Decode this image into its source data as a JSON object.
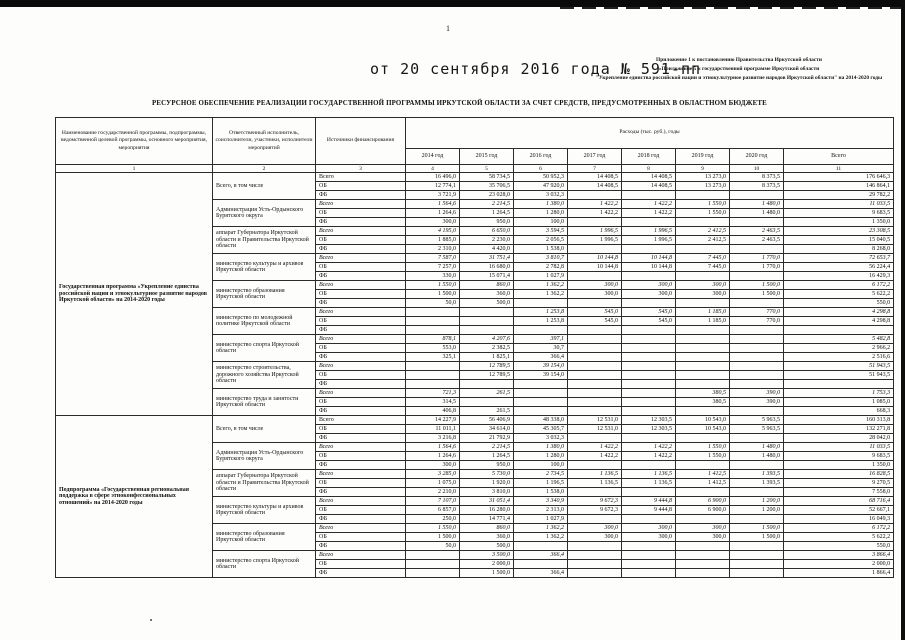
{
  "page": {
    "page_number": "1",
    "date_line": "от 20 сентября 2016 года № 591-пп",
    "appendix_lines": [
      "Приложение 1 к постановлению Правительства Иркутской области",
      "«Приложение 5 к государственной программе Иркутской области",
      "\"Укрепление единства российской нации и этнокультурное развитие народов Иркутской области\" на 2014-2020 годы"
    ],
    "title": "РЕСУРСНОЕ ОБЕСПЕЧЕНИЕ РЕАЛИЗАЦИИ ГОСУДАРСТВЕННОЙ ПРОГРАММЫ ИРКУТСКОЙ ОБЛАСТИ ЗА СЧЕТ СРЕДСТВ, ПРЕДУСМОТРЕННЫХ В ОБЛАСТНОМ БЮДЖЕТЕ"
  },
  "table": {
    "header": {
      "col1": "Наименование государственной программы, подпрограммы, ведомственной целевой программы, основного мероприятия, мероприятия",
      "col2": "Ответственный исполнитель, соисполнители, участники, исполнители мероприятий",
      "col3": "Источники финансирования",
      "expenses": "Расходы (тыс. руб.), годы",
      "years": [
        "2014 год",
        "2015 год",
        "2016 год",
        "2017 год",
        "2018 год",
        "2019 год",
        "2020 год",
        "Всего"
      ],
      "col_numbers": [
        "1",
        "2",
        "3",
        "4",
        "5",
        "6",
        "7",
        "8",
        "9",
        "10",
        "11"
      ]
    },
    "blocks": [
      {
        "program": "Государственная программа «Укрепление единства российской нации и этнокультурное развитие народов Иркутской области» на 2014-2020 годы",
        "groups": [
          {
            "executor": "Всего, в том числе",
            "rows": [
              {
                "source": "Всего",
                "values": [
                  "16 496,0",
                  "58 734,5",
                  "50 952,3",
                  "14 408,5",
                  "14 408,5",
                  "13 273,0",
                  "8 373,5",
                  "176 646,3"
                ]
              },
              {
                "source": "ОБ",
                "values": [
                  "12 774,1",
                  "35 706,5",
                  "47 920,0",
                  "14 408,5",
                  "14 408,5",
                  "13 273,0",
                  "8 373,5",
                  "146 864,1"
                ]
              },
              {
                "source": "ФБ",
                "values": [
                  "3 721,9",
                  "23 028,0",
                  "3 032,3",
                  "",
                  "",
                  "",
                  "",
                  "29 782,2"
                ]
              }
            ]
          },
          {
            "executor": "Администрация Усть-Ордынского Бурятского округа",
            "rows": [
              {
                "source": "Всего",
                "values": [
                  "1 564,6",
                  "2 214,5",
                  "1 380,0",
                  "1 422,2",
                  "1 422,2",
                  "1 550,0",
                  "1 480,0",
                  "11 033,5"
                ]
              },
              {
                "source": "ОБ",
                "values": [
                  "1 264,6",
                  "1 264,5",
                  "1 280,0",
                  "1 422,2",
                  "1 422,2",
                  "1 550,0",
                  "1 480,0",
                  "9 683,5"
                ]
              },
              {
                "source": "ФБ",
                "values": [
                  "300,0",
                  "950,0",
                  "100,0",
                  "",
                  "",
                  "",
                  "",
                  "1 350,0"
                ]
              }
            ]
          },
          {
            "executor": "аппарат Губернатора Иркутской области и Правительства Иркутской области",
            "rows": [
              {
                "source": "Всего",
                "values": [
                  "4 195,0",
                  "6 650,0",
                  "3 594,5",
                  "1 996,5",
                  "1 996,5",
                  "2 412,5",
                  "2 463,5",
                  "23 308,5"
                ]
              },
              {
                "source": "ОБ",
                "values": [
                  "1 885,0",
                  "2 230,0",
                  "2 056,5",
                  "1 996,5",
                  "1 996,5",
                  "2 412,5",
                  "2 463,5",
                  "15 040,5"
                ]
              },
              {
                "source": "ФБ",
                "values": [
                  "2 310,0",
                  "4 420,0",
                  "1 538,0",
                  "",
                  "",
                  "",
                  "",
                  "8 268,0"
                ]
              }
            ]
          },
          {
            "executor": "министерство культуры и архивов Иркутской области",
            "rows": [
              {
                "source": "Всего",
                "values": [
                  "7 587,0",
                  "31 751,4",
                  "3 810,7",
                  "10 144,8",
                  "10 144,8",
                  "7 445,0",
                  "1 770,0",
                  "72 653,7"
                ]
              },
              {
                "source": "ОБ",
                "values": [
                  "7 257,0",
                  "16 680,0",
                  "2 782,8",
                  "10 144,8",
                  "10 144,8",
                  "7 445,0",
                  "1 770,0",
                  "56 224,4"
                ]
              },
              {
                "source": "ФБ",
                "values": [
                  "330,0",
                  "15 071,4",
                  "1 027,9",
                  "",
                  "",
                  "",
                  "",
                  "16 429,3"
                ]
              }
            ]
          },
          {
            "executor": "министерство образования Иркутской области",
            "rows": [
              {
                "source": "Всего",
                "values": [
                  "1 550,0",
                  "860,0",
                  "1 362,2",
                  "300,0",
                  "300,0",
                  "300,0",
                  "1 500,0",
                  "6 172,2"
                ]
              },
              {
                "source": "ОБ",
                "values": [
                  "1 500,0",
                  "360,0",
                  "1 362,2",
                  "300,0",
                  "300,0",
                  "300,0",
                  "1 500,0",
                  "5 622,2"
                ]
              },
              {
                "source": "ФБ",
                "values": [
                  "50,0",
                  "500,0",
                  "",
                  "",
                  "",
                  "",
                  "",
                  "550,0"
                ]
              }
            ]
          },
          {
            "executor": "министерство по молодежной политике Иркутской области",
            "rows": [
              {
                "source": "Всего",
                "values": [
                  "",
                  "",
                  "1 253,8",
                  "545,0",
                  "545,0",
                  "1 185,0",
                  "770,0",
                  "4 298,8"
                ]
              },
              {
                "source": "ОБ",
                "values": [
                  "",
                  "",
                  "1 253,8",
                  "545,0",
                  "545,0",
                  "1 185,0",
                  "770,0",
                  "4 298,8"
                ]
              },
              {
                "source": "ФБ",
                "values": [
                  "",
                  "",
                  "",
                  "",
                  "",
                  "",
                  "",
                  ""
                ]
              }
            ]
          },
          {
            "executor": "министерство спорта Иркутской области",
            "rows": [
              {
                "source": "Всего",
                "values": [
                  "878,1",
                  "4 207,6",
                  "397,1",
                  "",
                  "",
                  "",
                  "",
                  "5 482,8"
                ]
              },
              {
                "source": "ОБ",
                "values": [
                  "553,0",
                  "2 382,5",
                  "30,7",
                  "",
                  "",
                  "",
                  "",
                  "2 966,2"
                ]
              },
              {
                "source": "ФБ",
                "values": [
                  "325,1",
                  "1 825,1",
                  "366,4",
                  "",
                  "",
                  "",
                  "",
                  "2 516,6"
                ]
              }
            ]
          },
          {
            "executor": "министерство строительства, дорожного хозяйства Иркутской области",
            "rows": [
              {
                "source": "Всего",
                "values": [
                  "",
                  "12 789,5",
                  "39 154,0",
                  "",
                  "",
                  "",
                  "",
                  "51 943,5"
                ]
              },
              {
                "source": "ОБ",
                "values": [
                  "",
                  "12 789,5",
                  "39 154,0",
                  "",
                  "",
                  "",
                  "",
                  "51 943,5"
                ]
              },
              {
                "source": "ФБ",
                "values": [
                  "",
                  "",
                  "",
                  "",
                  "",
                  "",
                  "",
                  ""
                ]
              }
            ]
          },
          {
            "executor": "министерство труда и занятости Иркутской области",
            "rows": [
              {
                "source": "Всего",
                "values": [
                  "721,3",
                  "261,5",
                  "",
                  "",
                  "",
                  "380,5",
                  "390,0",
                  "1 753,3"
                ]
              },
              {
                "source": "ОБ",
                "values": [
                  "314,5",
                  "",
                  "",
                  "",
                  "",
                  "380,5",
                  "390,0",
                  "1 085,0"
                ]
              },
              {
                "source": "ФБ",
                "values": [
                  "406,8",
                  "261,5",
                  "",
                  "",
                  "",
                  "",
                  "",
                  "668,3"
                ]
              }
            ]
          }
        ]
      },
      {
        "program": "Подпрограмма «Государственная региональная поддержка в сфере этноконфессиональных отношений» на 2014-2020 годы",
        "groups": [
          {
            "executor": "Всего, в том числе",
            "rows": [
              {
                "source": "Всего",
                "values": [
                  "14 227,9",
                  "56 406,9",
                  "48 338,0",
                  "12 531,0",
                  "12 303,5",
                  "10 543,0",
                  "5 963,5",
                  "160 313,8"
                ]
              },
              {
                "source": "ОБ",
                "values": [
                  "11 011,1",
                  "34 614,0",
                  "45 305,7",
                  "12 531,0",
                  "12 303,5",
                  "10 543,0",
                  "5 963,5",
                  "132 271,8"
                ]
              },
              {
                "source": "ФБ",
                "values": [
                  "3 216,8",
                  "21 792,9",
                  "3 032,3",
                  "",
                  "",
                  "",
                  "",
                  "28 042,0"
                ]
              }
            ]
          },
          {
            "executor": "Администрация Усть-Ордынского Бурятского округа",
            "rows": [
              {
                "source": "Всего",
                "values": [
                  "1 564,6",
                  "2 214,5",
                  "1 380,0",
                  "1 422,2",
                  "1 422,2",
                  "1 550,0",
                  "1 480,0",
                  "11 033,5"
                ]
              },
              {
                "source": "ОБ",
                "values": [
                  "1 264,6",
                  "1 264,5",
                  "1 280,0",
                  "1 422,2",
                  "1 422,2",
                  "1 550,0",
                  "1 480,0",
                  "9 683,5"
                ]
              },
              {
                "source": "ФБ",
                "values": [
                  "300,0",
                  "950,0",
                  "100,0",
                  "",
                  "",
                  "",
                  "",
                  "1 350,0"
                ]
              }
            ]
          },
          {
            "executor": "аппарат Губернатора Иркутской области и Правительства Иркутской области",
            "rows": [
              {
                "source": "Всего",
                "values": [
                  "3 285,0",
                  "5 730,0",
                  "2 734,5",
                  "1 136,5",
                  "1 136,5",
                  "1 412,5",
                  "1 393,5",
                  "16 828,5"
                ]
              },
              {
                "source": "ОБ",
                "values": [
                  "1 075,0",
                  "1 920,0",
                  "1 196,5",
                  "1 136,5",
                  "1 136,5",
                  "1 412,5",
                  "1 393,5",
                  "9 270,5"
                ]
              },
              {
                "source": "ФБ",
                "values": [
                  "2 210,0",
                  "3 810,0",
                  "1 538,0",
                  "",
                  "",
                  "",
                  "",
                  "7 558,0"
                ]
              }
            ]
          },
          {
            "executor": "министерство культуры и архивов Иркутской области",
            "rows": [
              {
                "source": "Всего",
                "values": [
                  "7 107,0",
                  "31 051,4",
                  "3 340,9",
                  "9 672,3",
                  "9 444,8",
                  "6 900,0",
                  "1 200,0",
                  "68 716,4"
                ]
              },
              {
                "source": "ОБ",
                "values": [
                  "6 857,0",
                  "16 280,0",
                  "2 313,0",
                  "9 672,3",
                  "9 444,8",
                  "6 900,0",
                  "1 200,0",
                  "52 667,1"
                ]
              },
              {
                "source": "ФБ",
                "values": [
                  "250,0",
                  "14 771,4",
                  "1 027,9",
                  "",
                  "",
                  "",
                  "",
                  "16 049,3"
                ]
              }
            ]
          },
          {
            "executor": "министерство образования Иркутской области",
            "rows": [
              {
                "source": "Всего",
                "values": [
                  "1 550,0",
                  "860,0",
                  "1 362,2",
                  "300,0",
                  "300,0",
                  "300,0",
                  "1 500,0",
                  "6 172,2"
                ]
              },
              {
                "source": "ОБ",
                "values": [
                  "1 500,0",
                  "360,0",
                  "1 362,2",
                  "300,0",
                  "300,0",
                  "300,0",
                  "1 500,0",
                  "5 622,2"
                ]
              },
              {
                "source": "ФБ",
                "values": [
                  "50,0",
                  "500,0",
                  "",
                  "",
                  "",
                  "",
                  "",
                  "550,0"
                ]
              }
            ]
          },
          {
            "executor": "министерство спорта Иркутской области",
            "rows": [
              {
                "source": "Всего",
                "values": [
                  "",
                  "3 500,0",
                  "366,4",
                  "",
                  "",
                  "",
                  "",
                  "3 866,4"
                ]
              },
              {
                "source": "ОБ",
                "values": [
                  "",
                  "2 000,0",
                  "",
                  "",
                  "",
                  "",
                  "",
                  "2 000,0"
                ]
              },
              {
                "source": "ФБ",
                "values": [
                  "",
                  "1 500,0",
                  "366,4",
                  "",
                  "",
                  "",
                  "",
                  "1 866,4"
                ]
              }
            ]
          }
        ]
      }
    ]
  }
}
